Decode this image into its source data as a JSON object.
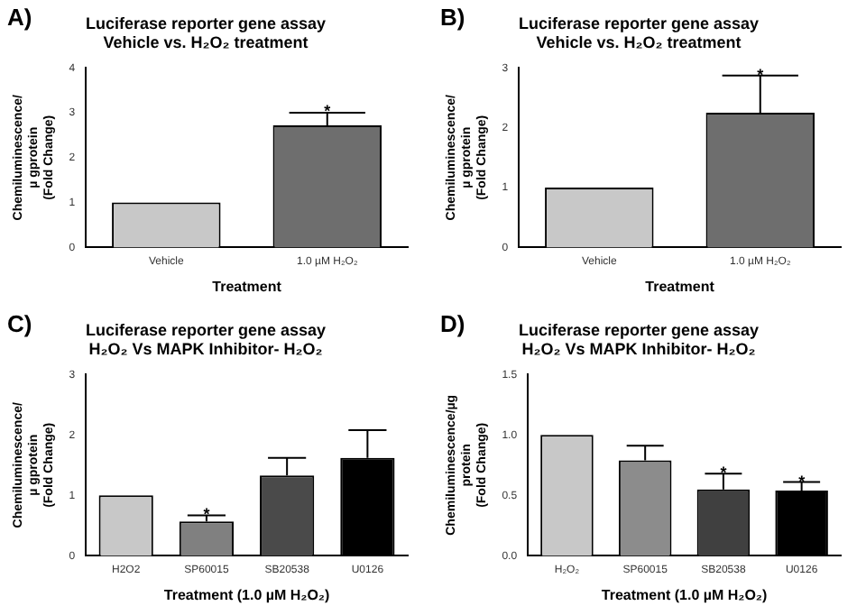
{
  "chart_data": [
    {
      "type": "bar",
      "title": "Luciferase reporter gene assay\nVehicle vs. H₂O₂ treatment",
      "xlabel": "Treatment",
      "ylabel": "Chemiluminescence/\nµ gprotein\n(Fold Change)",
      "categories": [
        "Vehicle",
        "1.0 µM H₂O₂"
      ],
      "values": [
        1.0,
        2.72
      ],
      "colors": [
        "#c8c8c8",
        "#6e6e6e"
      ],
      "errors": [
        null,
        [
          2.72,
          3.0
        ]
      ],
      "ylim": [
        0,
        4
      ],
      "yticks": [
        0,
        1,
        2,
        3,
        4
      ],
      "grid": false,
      "legend": false,
      "annotations": [
        "A)",
        {
          "text": "*",
          "x": "1.0 µM H₂O₂",
          "y": 3.1
        }
      ]
    },
    {
      "type": "bar",
      "title": "Luciferase reporter gene assay\nVehicle vs. H₂O₂ treatment",
      "xlabel": "Treatment",
      "ylabel": "Chemiluminescence/\nµ gprotein\n(Fold Change)",
      "categories": [
        "Vehicle",
        "1.0 µM H₂O₂"
      ],
      "values": [
        1.0,
        2.25
      ],
      "colors": [
        "#c8c8c8",
        "#6e6e6e"
      ],
      "errors": [
        null,
        [
          2.25,
          2.87
        ]
      ],
      "ylim": [
        0,
        3
      ],
      "yticks": [
        0,
        1,
        2,
        3
      ],
      "grid": false,
      "legend": false,
      "annotations": [
        "B)",
        {
          "text": "*",
          "x": "1.0 µM H₂O₂",
          "y": 2.93
        }
      ]
    },
    {
      "type": "bar",
      "title": "Luciferase reporter gene assay\nH₂O₂ Vs MAPK Inhibitor- H₂O₂",
      "xlabel": "Treatment (1.0 µM H₂O₂)",
      "ylabel": "Chemiluminescence/\nµ gprotein\n(Fold Change)",
      "categories": [
        "H2O2",
        "SP60015",
        "SB20538",
        "U0126"
      ],
      "values": [
        1.0,
        0.57,
        1.33,
        1.62
      ],
      "colors": [
        "#c8c8c8",
        "#808080",
        "#4a4a4a",
        "#000000"
      ],
      "errors": [
        null,
        [
          0.57,
          0.67
        ],
        [
          1.33,
          1.62
        ],
        [
          1.62,
          2.08
        ]
      ],
      "ylim": [
        0,
        3
      ],
      "yticks": [
        0,
        1,
        2,
        3
      ],
      "grid": false,
      "legend": false,
      "annotations": [
        "C)",
        {
          "text": "*",
          "x": "SP60015",
          "y": 0.74
        }
      ]
    },
    {
      "type": "bar",
      "title": "Luciferase reporter gene assay\nH₂O₂ Vs MAPK Inhibitor- H₂O₂",
      "xlabel": "Treatment (1.0 µM H₂O₂)",
      "ylabel": "Chemiluminescence/µg\nprotein\n(Fold Change)",
      "categories": [
        "H₂O₂",
        "SP60015",
        "SB20538",
        "U0126"
      ],
      "values": [
        1.0,
        0.79,
        0.55,
        0.54
      ],
      "colors": [
        "#c8c8c8",
        "#8c8c8c",
        "#404040",
        "#000000"
      ],
      "errors": [
        null,
        [
          0.79,
          0.91
        ],
        [
          0.55,
          0.68
        ],
        [
          0.54,
          0.61
        ]
      ],
      "ylim": [
        0,
        1.5
      ],
      "yticks": [
        {
          "value": 0,
          "label": "0.0"
        },
        {
          "value": 0.5,
          "label": "0.5"
        },
        {
          "value": 1,
          "label": "1.0"
        },
        {
          "value": 1.5,
          "label": "1.5"
        }
      ],
      "grid": false,
      "legend": false,
      "annotations": [
        "D)",
        {
          "text": "*",
          "x": "SB20538",
          "y": 0.71
        },
        {
          "text": "*",
          "x": "U0126",
          "y": 0.64
        }
      ]
    }
  ]
}
